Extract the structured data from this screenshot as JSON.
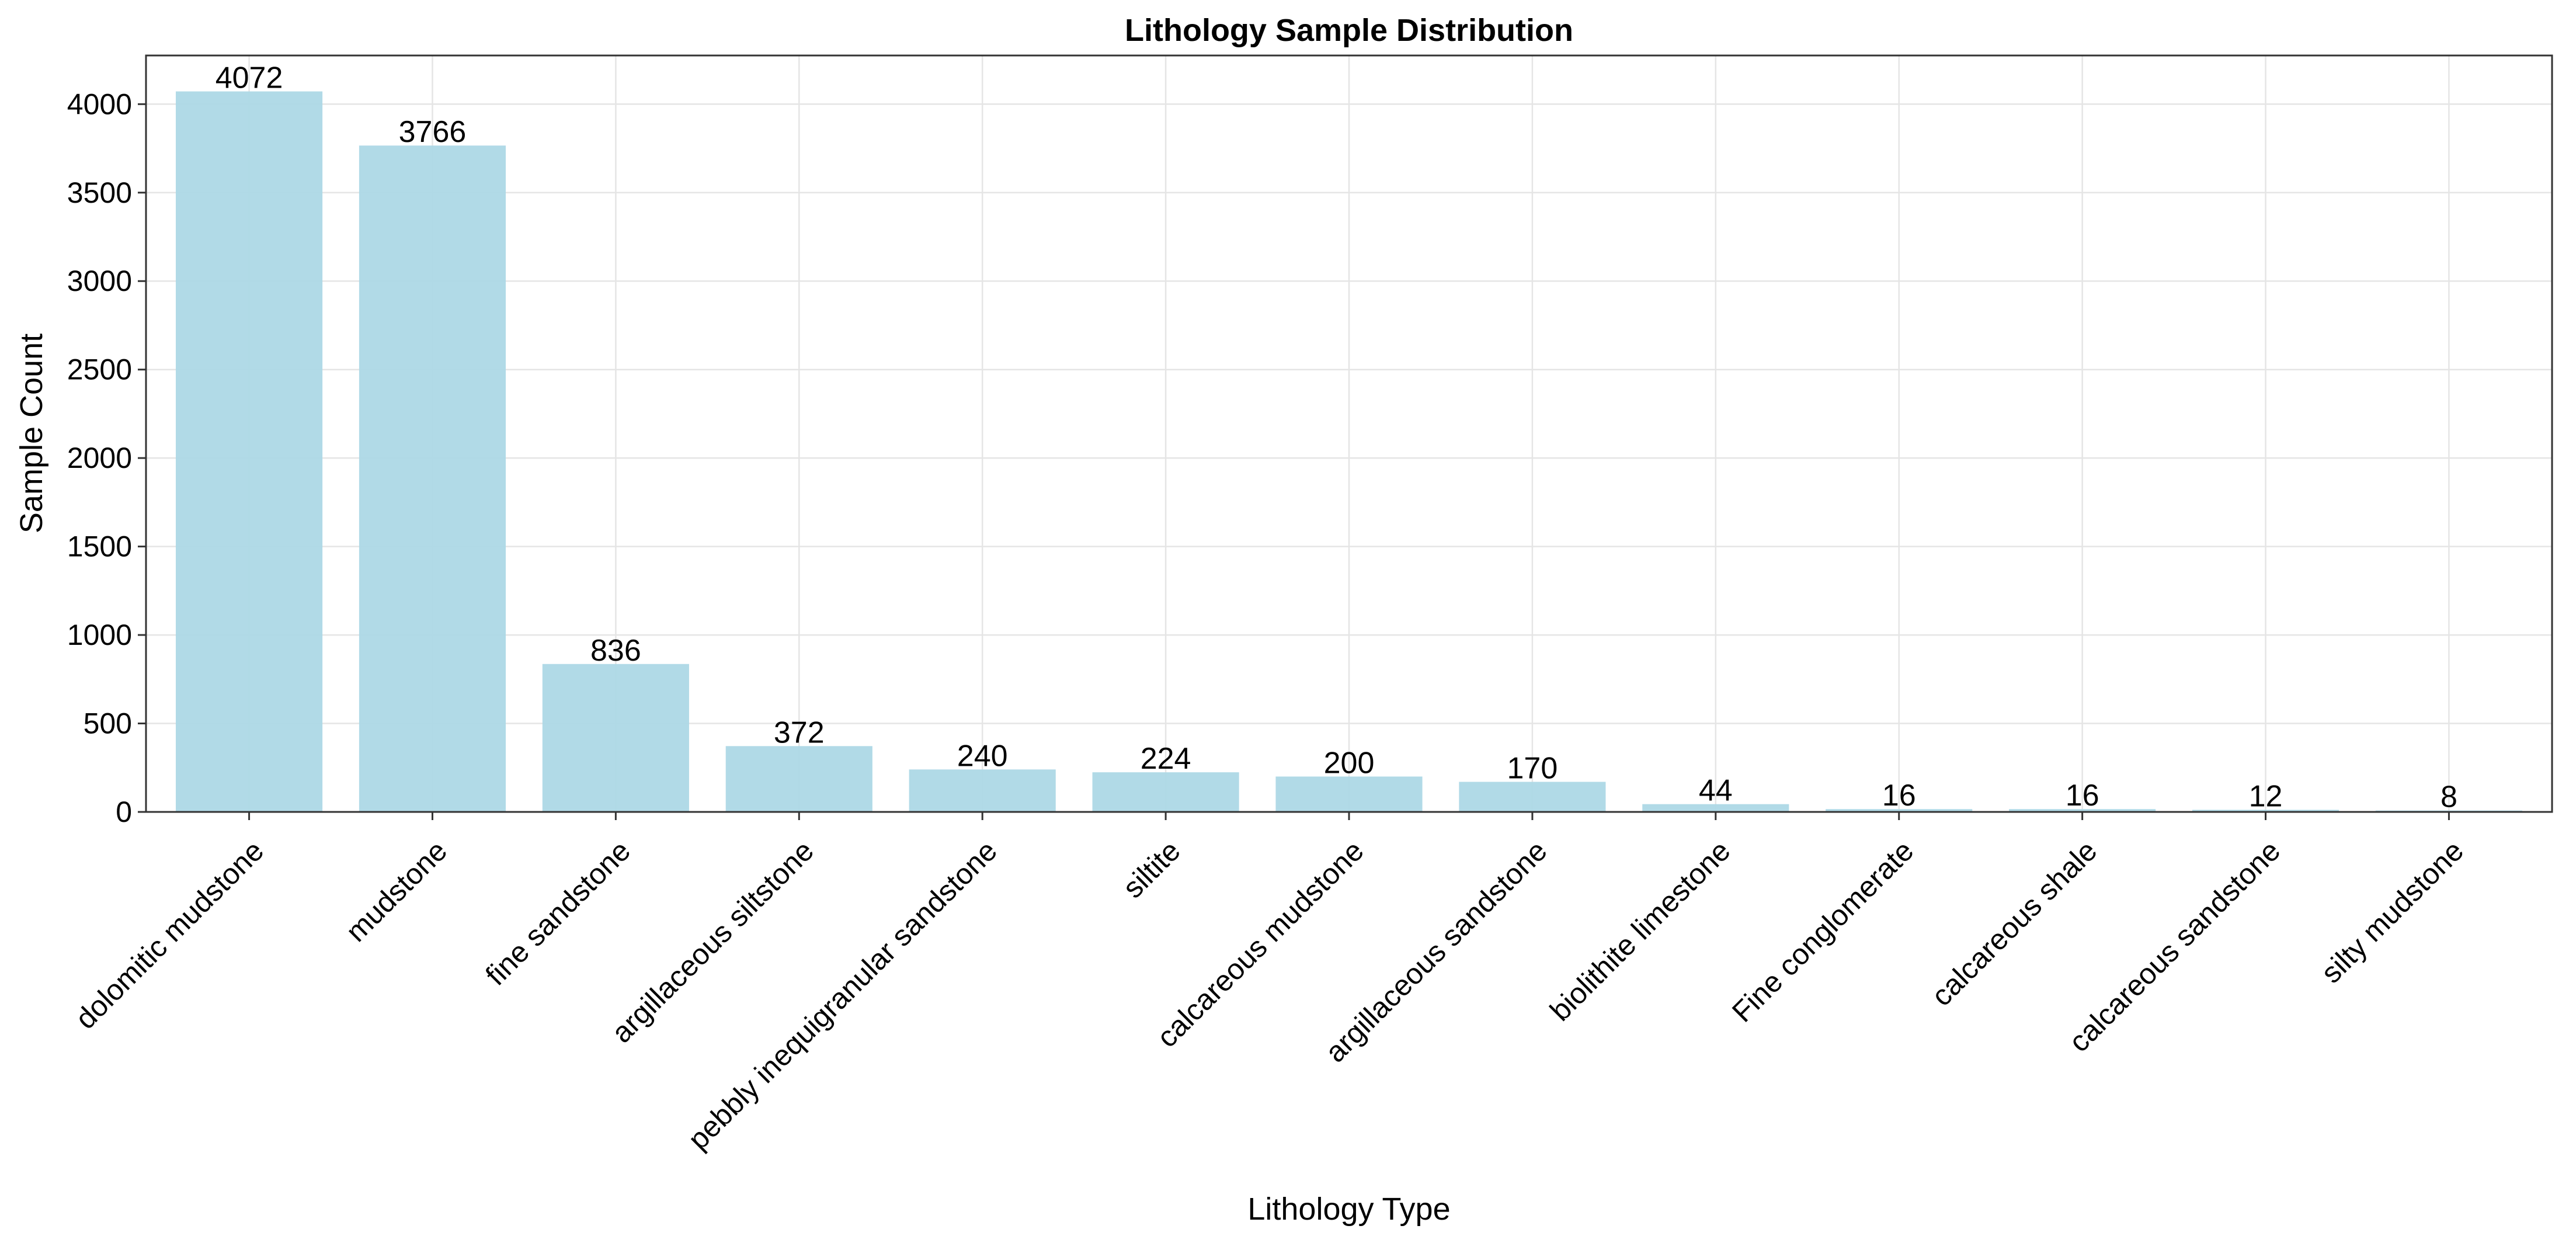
{
  "chart_data": {
    "type": "bar",
    "title": "Lithology Sample Distribution",
    "xlabel": "Lithology Type",
    "ylabel": "Sample Count",
    "categories": [
      "dolomitic mudstone",
      "mudstone",
      "fine sandstone",
      "argillaceous siltstone",
      "pebbly inequigranular sandstone",
      "siltite",
      "calcareous mudstone",
      "argillaceous sandstone",
      "biolithite limestone",
      "Fine conglomerate",
      "calcareous shale",
      "calcareous sandstone",
      "silty mudstone"
    ],
    "values": [
      4072,
      3766,
      836,
      372,
      240,
      224,
      200,
      170,
      44,
      16,
      16,
      12,
      8
    ],
    "ylim": [
      0,
      4275
    ],
    "yticks": [
      0,
      500,
      1000,
      1500,
      2000,
      2500,
      3000,
      3500,
      4000
    ],
    "grid": true,
    "bar_color": "#add8e6"
  }
}
